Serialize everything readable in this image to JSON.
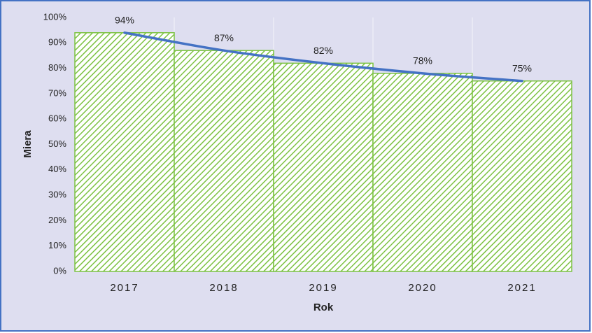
{
  "chart_data": {
    "type": "bar",
    "x_label": "Rok",
    "y_label": "Miera",
    "categories": [
      "2017",
      "2018",
      "2019",
      "2020",
      "2021"
    ],
    "values": [
      94,
      87,
      82,
      78,
      75
    ],
    "value_labels": [
      "94%",
      "87%",
      "82%",
      "78%",
      "75%"
    ],
    "color": "#7cc242",
    "trend_color": "#4472c4",
    "ylim": [
      0,
      100
    ],
    "yticks": [
      {
        "value": 0,
        "label": "0%"
      },
      {
        "value": 10,
        "label": "10%"
      },
      {
        "value": 20,
        "label": "20%"
      },
      {
        "value": 30,
        "label": "30%"
      },
      {
        "value": 40,
        "label": "40%"
      },
      {
        "value": 50,
        "label": "50%"
      },
      {
        "value": 60,
        "label": "60%"
      },
      {
        "value": 70,
        "label": "70%"
      },
      {
        "value": 80,
        "label": "80%"
      },
      {
        "value": 90,
        "label": "90%"
      },
      {
        "value": 100,
        "label": "100%"
      }
    ]
  }
}
